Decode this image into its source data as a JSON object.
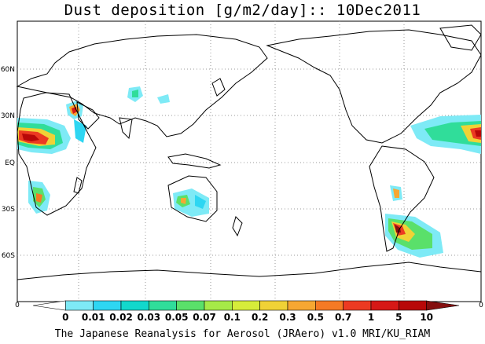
{
  "title": "Dust deposition [g/m2/day]:: 10Dec2011",
  "credit": "The Japanese Reanalysis for Aerosol (JRAero) v1.0 MRI/KU_RIAM",
  "map": {
    "lat_labels": [
      "60N",
      "30N",
      "EQ",
      "30S",
      "60S"
    ],
    "frame_corner_labels": {
      "left": "0",
      "right": "0"
    }
  },
  "colorbar": {
    "tick_labels": [
      "0",
      "0.01",
      "0.02",
      "0.03",
      "0.05",
      "0.07",
      "0.1",
      "0.2",
      "0.3",
      "0.5",
      "0.7",
      "1",
      "5",
      "10"
    ],
    "colors": [
      "#ffffff",
      "#7eeaf6",
      "#2ed6f2",
      "#12d8cc",
      "#30dd9a",
      "#5ae06a",
      "#a6ea48",
      "#d6ec3a",
      "#f0d236",
      "#f6a732",
      "#f57a25",
      "#ec3a22",
      "#d61816",
      "#b80808",
      "#841010"
    ]
  }
}
